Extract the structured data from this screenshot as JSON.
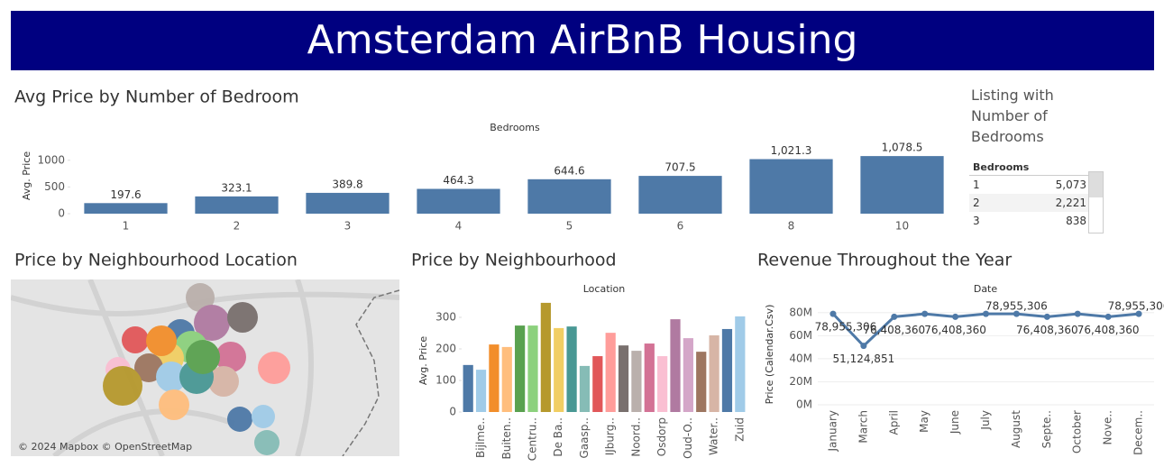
{
  "header": {
    "title": "Amsterdam AirBnB Housing"
  },
  "chart_data": [
    {
      "type": "bar",
      "title": "Avg Price by Number of Bedroom",
      "x_label": "Bedrooms",
      "y_label": "Avg. Price",
      "categories": [
        "1",
        "2",
        "3",
        "4",
        "5",
        "6",
        "8",
        "10"
      ],
      "series": [
        {
          "color": "#4e79a7",
          "values": [
            197.6,
            323.1,
            389.8,
            464.3,
            644.6,
            707.5,
            1021.3,
            1078.5
          ],
          "value_labels": [
            "197.6",
            "323.1",
            "389.8",
            "464.3",
            "644.6",
            "707.5",
            "1,021.3",
            "1,078.5"
          ]
        }
      ],
      "ylim": [
        0,
        1300
      ],
      "yticks": [
        0,
        500,
        1000
      ]
    },
    {
      "type": "bar",
      "title": "Price by Neighbourhood",
      "x_label": "Location",
      "y_label": "Avg. Price",
      "categories": [
        null,
        "Bijlme..",
        null,
        "Buiten..",
        null,
        "Centru..",
        null,
        "De Ba..",
        null,
        "Gaasp..",
        null,
        "IJburg..",
        null,
        "Noord..",
        null,
        "Osdorp",
        null,
        "Oud-O..",
        null,
        "Water..",
        null,
        "Zuid"
      ],
      "series": [
        {
          "values": [
            149,
            134,
            214,
            206,
            274,
            274,
            346,
            266,
            271,
            146,
            177,
            251,
            211,
            194,
            217,
            177,
            294,
            234,
            191,
            243,
            263,
            303
          ],
          "colors": [
            "#4e79a7",
            "#a0cbe8",
            "#f28e2b",
            "#ffbe7d",
            "#59a14f",
            "#8cd17d",
            "#b6992d",
            "#f1ce63",
            "#499894",
            "#86bcb6",
            "#e15759",
            "#ff9d9a",
            "#79706e",
            "#bab0ac",
            "#d37295",
            "#fabfd2",
            "#b07aa1",
            "#d4a6c8",
            "#9d7660",
            "#d7b5a6",
            "#4e79a7",
            "#a0cbe8"
          ]
        }
      ],
      "ylim": [
        0,
        360
      ],
      "yticks": [
        0,
        100,
        200,
        300
      ]
    },
    {
      "type": "line",
      "title": "Revenue Throughout the Year",
      "x_label": "Date",
      "y_label": "Price (Calendar.Csv)",
      "categories": [
        "January",
        "March",
        "April",
        "May",
        "June",
        "July",
        "August",
        "Septe..",
        "October",
        "Nove..",
        "Decem.."
      ],
      "series": [
        {
          "color": "#4e79a7",
          "values": [
            78955306,
            51124851,
            76408360,
            78955306,
            76408360,
            78955306,
            78955306,
            76408360,
            78955306,
            76408360,
            78955306
          ],
          "value_labels": [
            "78,955,306",
            "51,124,851",
            "76,408,360",
            null,
            "76,408,360",
            null,
            "78,955,306",
            "76,408,360",
            null,
            "76,408,360",
            "78,955,306"
          ]
        }
      ],
      "ylim": [
        0,
        90000000
      ],
      "yticks": [
        {
          "value": 0,
          "label": "0M"
        },
        {
          "value": 20000000,
          "label": "20M"
        },
        {
          "value": 40000000,
          "label": "40M"
        },
        {
          "value": 60000000,
          "label": "60M"
        },
        {
          "value": 80000000,
          "label": "80M"
        }
      ],
      "grid": true
    }
  ],
  "map": {
    "title": "Price by Neighbourhood Location",
    "credit": "© 2024 Mapbox © OpenStreetMap"
  },
  "table": {
    "title": "Listing with Number of Bedrooms",
    "header": "Bedrooms",
    "rows": [
      [
        "1",
        "5,073"
      ],
      [
        "2",
        "2,221"
      ],
      [
        "3",
        "838"
      ]
    ]
  }
}
